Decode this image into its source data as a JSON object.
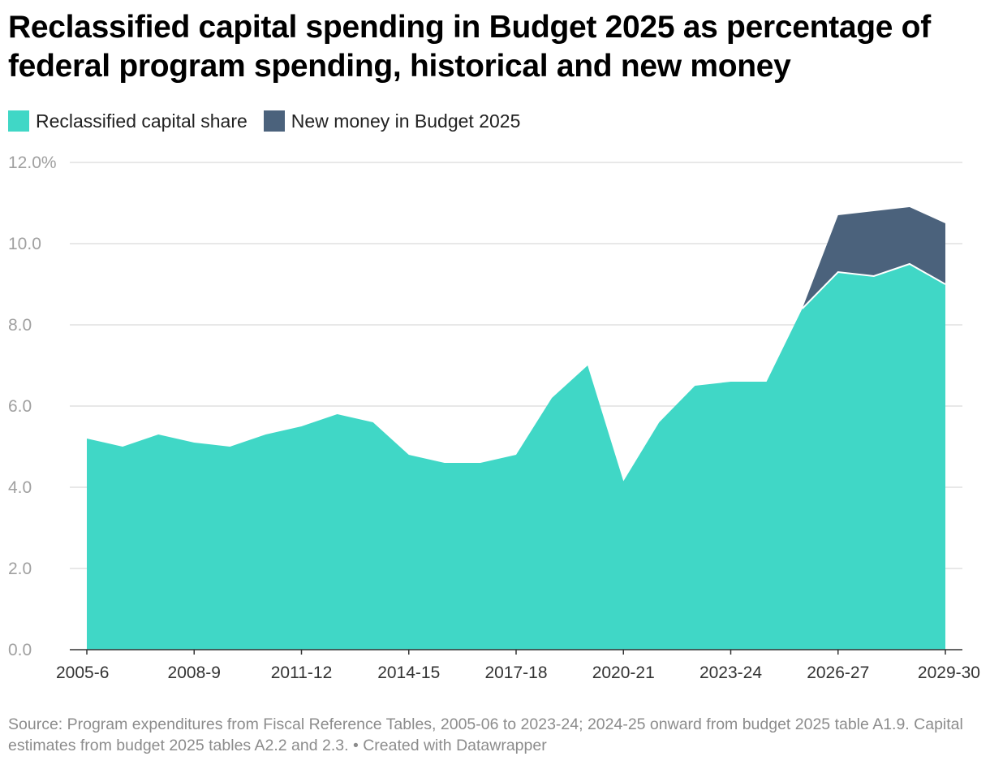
{
  "title": "Reclassified capital spending in Budget 2025 as percentage of federal program spending, historical and new money",
  "source": "Source: Program expenditures from Fiscal Reference Tables, 2005-06 to 2023-24; 2024-25 onward from budget 2025 table A1.9. Capital estimates from budget 2025 tables A2.2 and 2.3. • Created with Datawrapper",
  "colors": {
    "reclassified": "#40d7c6",
    "new_money": "#4b627c",
    "grid": "#e0e0e0",
    "axis": "#333333"
  },
  "chart_data": {
    "type": "area",
    "stacked": true,
    "x": [
      "2005-6",
      "2006-7",
      "2007-8",
      "2008-9",
      "2009-10",
      "2010-11",
      "2011-12",
      "2012-13",
      "2013-14",
      "2014-15",
      "2015-16",
      "2016-17",
      "2017-18",
      "2018-19",
      "2019-20",
      "2020-21",
      "2021-22",
      "2022-23",
      "2023-24",
      "2024-25",
      "2025-26",
      "2026-27",
      "2027-28",
      "2028-29",
      "2029-30"
    ],
    "x_tick_labels": [
      "2005-6",
      "2008-9",
      "2011-12",
      "2014-15",
      "2017-18",
      "2020-21",
      "2023-24",
      "2026-27",
      "2029-30"
    ],
    "series": [
      {
        "name": "Reclassified capital share",
        "color": "#40d7c6",
        "values": [
          5.2,
          5.0,
          5.3,
          5.1,
          5.0,
          5.3,
          5.5,
          5.8,
          5.6,
          4.8,
          4.6,
          4.6,
          4.8,
          6.2,
          7.0,
          4.15,
          5.6,
          6.5,
          6.6,
          6.6,
          8.4,
          9.3,
          9.2,
          9.5,
          9.0
        ]
      },
      {
        "name": "New money in Budget 2025",
        "color": "#4b627c",
        "values": [
          0,
          0,
          0,
          0,
          0,
          0,
          0,
          0,
          0,
          0,
          0,
          0,
          0,
          0,
          0,
          0,
          0,
          0,
          0,
          0,
          0,
          1.4,
          1.6,
          1.4,
          1.5
        ]
      }
    ],
    "y_ticks": [
      {
        "value": 0,
        "label": "0.0"
      },
      {
        "value": 2,
        "label": "2.0"
      },
      {
        "value": 4,
        "label": "4.0"
      },
      {
        "value": 6,
        "label": "6.0"
      },
      {
        "value": 8,
        "label": "8.0"
      },
      {
        "value": 10,
        "label": "10.0"
      },
      {
        "value": 12,
        "label": "12.0%"
      }
    ],
    "ylim": [
      0,
      12
    ],
    "grid": true,
    "legend_position": "top-left"
  }
}
